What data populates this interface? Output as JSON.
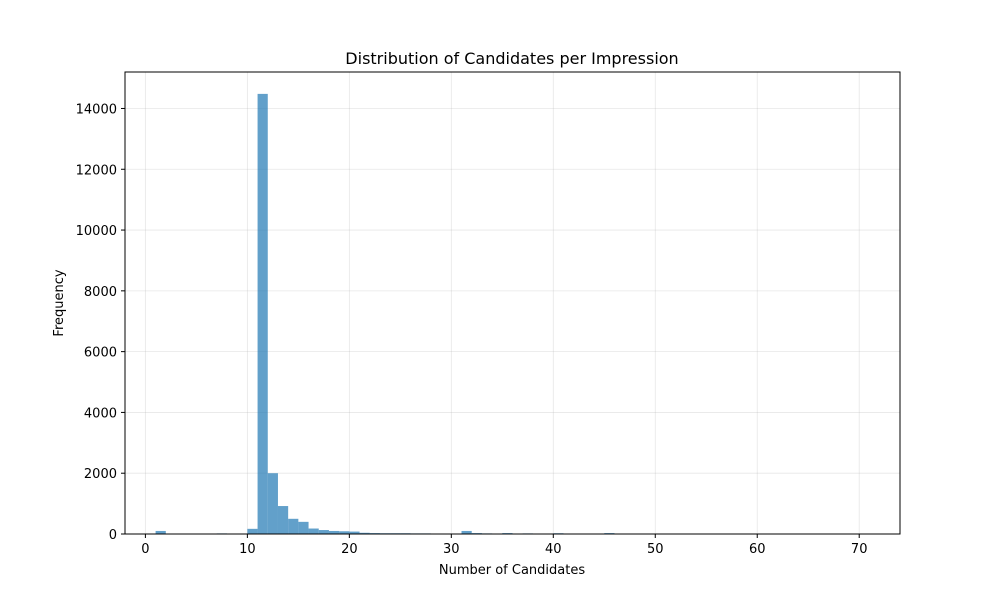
{
  "chart_data": {
    "type": "bar",
    "title": "Distribution of Candidates per Impression",
    "xlabel": "Number of Candidates",
    "ylabel": "Frequency",
    "xlim": [
      -2,
      74
    ],
    "ylim": [
      0,
      15200
    ],
    "x_ticks": [
      0,
      10,
      20,
      30,
      40,
      50,
      60,
      70
    ],
    "y_ticks": [
      0,
      2000,
      4000,
      6000,
      8000,
      10000,
      12000,
      14000
    ],
    "grid": true,
    "bar_color": "#1f77b4",
    "bar_opacity": 0.7,
    "bin_width": 1,
    "bins": [
      {
        "x": 1,
        "value": 100
      },
      {
        "x": 6,
        "value": 15
      },
      {
        "x": 7,
        "value": 20
      },
      {
        "x": 10,
        "value": 170
      },
      {
        "x": 11,
        "value": 14480
      },
      {
        "x": 12,
        "value": 2000
      },
      {
        "x": 13,
        "value": 920
      },
      {
        "x": 14,
        "value": 500
      },
      {
        "x": 15,
        "value": 400
      },
      {
        "x": 16,
        "value": 180
      },
      {
        "x": 17,
        "value": 130
      },
      {
        "x": 18,
        "value": 100
      },
      {
        "x": 19,
        "value": 90
      },
      {
        "x": 20,
        "value": 80
      },
      {
        "x": 21,
        "value": 40
      },
      {
        "x": 22,
        "value": 30
      },
      {
        "x": 23,
        "value": 25
      },
      {
        "x": 24,
        "value": 25
      },
      {
        "x": 25,
        "value": 25
      },
      {
        "x": 26,
        "value": 20
      },
      {
        "x": 27,
        "value": 20
      },
      {
        "x": 31,
        "value": 100
      },
      {
        "x": 32,
        "value": 30
      },
      {
        "x": 33,
        "value": 20
      },
      {
        "x": 35,
        "value": 30
      },
      {
        "x": 37,
        "value": 20
      },
      {
        "x": 38,
        "value": 15
      },
      {
        "x": 40,
        "value": 25
      },
      {
        "x": 45,
        "value": 30
      }
    ]
  }
}
